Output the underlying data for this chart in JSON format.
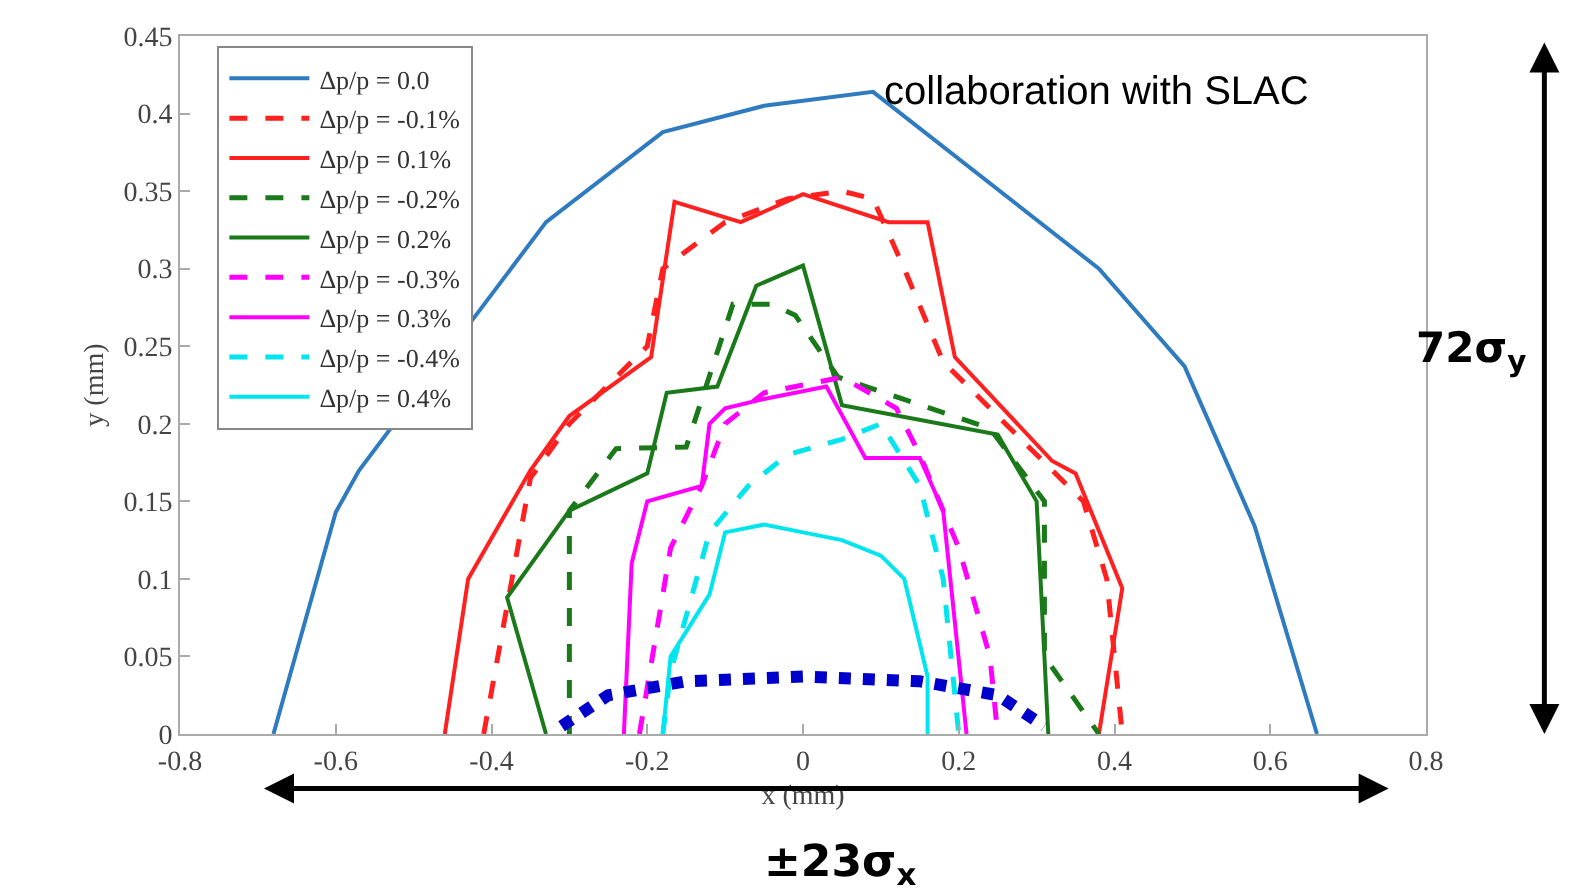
{
  "chart_data": {
    "type": "line",
    "xlabel": "x (mm)",
    "ylabel": "y (mm)",
    "xlim": [
      -0.8,
      0.8
    ],
    "xticks": [
      -0.8,
      -0.6,
      -0.4,
      -0.2,
      0,
      0.2,
      0.4,
      0.6,
      0.8
    ],
    "ylim": [
      0,
      0.45
    ],
    "yticks": [
      0,
      0.05,
      0.1,
      0.15,
      0.2,
      0.25,
      0.3,
      0.35,
      0.4,
      0.45
    ],
    "legend": "top left",
    "marker": "none",
    "annotations": [
      "collaboration with SLAC",
      "72σ$_{y}$",
      "±23σ$_{x}$"
    ],
    "series": [
      {
        "name": "Δp/p = 0.0",
        "color": "#2e7bbf",
        "line_style": "solid",
        "x": [
          -0.68,
          -0.6,
          -0.57,
          -0.33,
          -0.18,
          -0.05,
          0.09,
          0.38,
          0.49,
          0.58,
          0.66
        ],
        "values": [
          0,
          0.143,
          0.17,
          0.33,
          0.388,
          0.405,
          0.414,
          0.3,
          0.237,
          0.134,
          0
        ]
      },
      {
        "name": "Δp/p = -0.1%",
        "color": "#ff2020",
        "line_style": "dashed",
        "x": [
          -0.41,
          -0.35,
          -0.3,
          -0.2,
          -0.18,
          -0.1,
          -0.02,
          0.05,
          0.09,
          0.13,
          0.18,
          0.3,
          0.36,
          0.39,
          0.41
        ],
        "values": [
          0,
          0.165,
          0.2,
          0.25,
          0.3,
          0.33,
          0.345,
          0.35,
          0.345,
          0.3,
          0.24,
          0.18,
          0.15,
          0.1,
          0
        ]
      },
      {
        "name": "Δp/p = 0.1%",
        "color": "#ff2020",
        "line_style": "solid",
        "x": [
          -0.46,
          -0.43,
          -0.35,
          -0.3,
          -0.195,
          -0.165,
          -0.08,
          0.0,
          0.11,
          0.16,
          0.195,
          0.32,
          0.35,
          0.41,
          0.38
        ],
        "values": [
          0,
          0.1,
          0.17,
          0.205,
          0.243,
          0.343,
          0.33,
          0.348,
          0.33,
          0.33,
          0.243,
          0.176,
          0.168,
          0.094,
          0
        ]
      },
      {
        "name": "Δp/p = -0.2%",
        "color": "#1a7a1a",
        "line_style": "dashed",
        "x": [
          -0.3,
          -0.3,
          -0.24,
          -0.15,
          -0.09,
          -0.04,
          -0.01,
          0.045,
          0.24,
          0.31,
          0.31,
          0.38
        ],
        "values": [
          0,
          0.144,
          0.184,
          0.185,
          0.277,
          0.277,
          0.27,
          0.23,
          0.197,
          0.15,
          0.05,
          0
        ]
      },
      {
        "name": "Δp/p = 0.2%",
        "color": "#1a7a1a",
        "line_style": "solid",
        "x": [
          -0.33,
          -0.38,
          -0.3,
          -0.2,
          -0.175,
          -0.11,
          -0.06,
          0.0,
          0.05,
          0.25,
          0.3,
          0.315
        ],
        "values": [
          0,
          0.088,
          0.144,
          0.168,
          0.22,
          0.224,
          0.289,
          0.302,
          0.212,
          0.193,
          0.15,
          0
        ]
      },
      {
        "name": "Δp/p = -0.3%",
        "color": "#ff00ff",
        "line_style": "dashed",
        "x": [
          -0.21,
          -0.17,
          -0.13,
          -0.1,
          -0.05,
          0.0,
          0.05,
          0.12,
          0.15,
          0.2,
          0.24,
          0.25
        ],
        "values": [
          0,
          0.12,
          0.16,
          0.2,
          0.22,
          0.225,
          0.23,
          0.21,
          0.18,
          0.12,
          0.05,
          0
        ]
      },
      {
        "name": "Δp/p = 0.3%",
        "color": "#ff00ff",
        "line_style": "solid",
        "x": [
          -0.23,
          -0.22,
          -0.2,
          -0.13,
          -0.12,
          -0.1,
          -0.05,
          0.03,
          0.08,
          0.15,
          0.18,
          0.21
        ],
        "values": [
          0,
          0.11,
          0.15,
          0.16,
          0.2,
          0.21,
          0.216,
          0.224,
          0.178,
          0.178,
          0.144,
          0
        ]
      },
      {
        "name": "Δp/p = -0.4%",
        "color": "#00e5ee",
        "line_style": "dashed",
        "x": [
          -0.18,
          -0.17,
          -0.12,
          -0.07,
          -0.02,
          0.05,
          0.1,
          0.15,
          0.18,
          0.2
        ],
        "values": [
          0,
          0.04,
          0.13,
          0.16,
          0.18,
          0.19,
          0.2,
          0.16,
          0.1,
          0
        ]
      },
      {
        "name": "Δp/p = 0.4%",
        "color": "#00e5ee",
        "line_style": "solid",
        "x": [
          -0.18,
          -0.17,
          -0.12,
          -0.1,
          -0.05,
          0.0,
          0.05,
          0.1,
          0.13,
          0.16,
          0.16
        ],
        "values": [
          0,
          0.05,
          0.09,
          0.13,
          0.135,
          0.13,
          0.125,
          0.115,
          0.1,
          0.037,
          0
        ]
      },
      {
        "color": "#0000cc",
        "line_style": "dotted",
        "x": [
          -0.31,
          -0.25,
          -0.15,
          0.0,
          0.15,
          0.25,
          0.31
        ],
        "values": [
          0.005,
          0.025,
          0.034,
          0.037,
          0.034,
          0.025,
          0.005
        ]
      }
    ]
  }
}
